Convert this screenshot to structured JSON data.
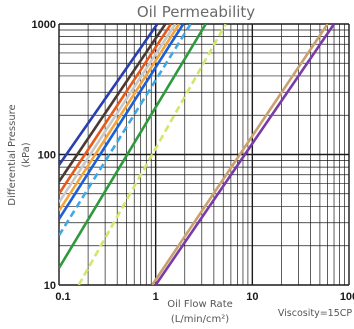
{
  "chart_data": {
    "type": "line",
    "title": "Oil Permeability",
    "xlabel_line1": "Oil Flow Rate",
    "xlabel_line2": "(L/min/cm²)",
    "ylabel_line1": "Differential Pressure",
    "ylabel_line2": "(kPa)",
    "note": "Viscosity=15CP",
    "x_scale": "log",
    "y_scale": "log",
    "xlim": [
      0.1,
      100
    ],
    "ylim": [
      10,
      1000
    ],
    "grid": true,
    "x_ticks": [
      {
        "value": 0.1,
        "label": "0.1"
      },
      {
        "value": 1,
        "label": "1"
      },
      {
        "value": 10,
        "label": "10"
      },
      {
        "value": 100,
        "label": "100"
      }
    ],
    "y_ticks": [
      {
        "value": 10,
        "label": "10"
      },
      {
        "value": 100,
        "label": "100"
      },
      {
        "value": 1000,
        "label": "1000"
      }
    ],
    "series": [
      {
        "color": "#2a3fae",
        "dashed": false,
        "points": [
          [
            0.1,
            83
          ],
          [
            1.04,
            1000
          ]
        ]
      },
      {
        "color": "#4a3a32",
        "dashed": false,
        "points": [
          [
            0.1,
            62
          ],
          [
            1.26,
            1000
          ]
        ]
      },
      {
        "color": "#e85a1a",
        "dashed": false,
        "points": [
          [
            0.1,
            50
          ],
          [
            1.44,
            1000
          ]
        ]
      },
      {
        "color": "#c8c8c8",
        "dashed": false,
        "points": [
          [
            0.1,
            43
          ],
          [
            1.6,
            1000
          ]
        ]
      },
      {
        "color": "#f3a53a",
        "dashed": false,
        "points": [
          [
            0.1,
            37
          ],
          [
            1.75,
            1000
          ]
        ]
      },
      {
        "color": "#1d5fd6",
        "dashed": false,
        "points": [
          [
            0.1,
            32
          ],
          [
            1.93,
            1000
          ]
        ]
      },
      {
        "color": "#3fa8e8",
        "dashed": true,
        "points": [
          [
            0.1,
            24
          ],
          [
            2.3,
            1000
          ]
        ]
      },
      {
        "color": "#2e9a3e",
        "dashed": false,
        "points": [
          [
            0.1,
            13.5
          ],
          [
            3.3,
            1000
          ]
        ]
      },
      {
        "color": "#cfe86a",
        "dashed": true,
        "points": [
          [
            0.16,
            10
          ],
          [
            5.3,
            1000
          ]
        ]
      },
      {
        "color": "#c9a070",
        "dashed": false,
        "points": [
          [
            0.92,
            10
          ],
          [
            60,
            1000
          ]
        ]
      },
      {
        "color": "#7a3aa8",
        "dashed": false,
        "points": [
          [
            1.0,
            10
          ],
          [
            70,
            1000
          ]
        ]
      }
    ]
  }
}
